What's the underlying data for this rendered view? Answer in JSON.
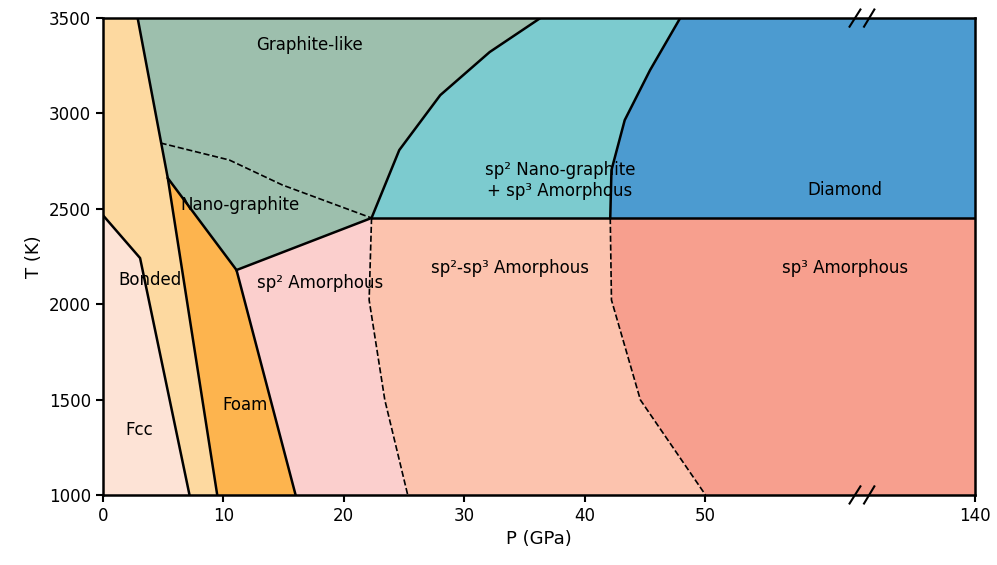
{
  "chart_data": {
    "type": "phase_diagram",
    "xlabel": "P (GPa)",
    "ylabel": "T (K)",
    "xlim": [
      0,
      140
    ],
    "ylim": [
      1000,
      3500
    ],
    "xticks": [
      0,
      10,
      20,
      30,
      40,
      50,
      140
    ],
    "yticks": [
      1000,
      1500,
      2000,
      2500,
      3000,
      3500
    ],
    "regions": [
      {
        "name": "Fcc",
        "color": "#fde3d6",
        "boundary": [
          [
            0,
            1000
          ],
          [
            7.2,
            1000
          ],
          [
            3.1,
            2242
          ],
          [
            0,
            2468
          ]
        ]
      },
      {
        "name": "Bonded",
        "color": "#fdd9a0",
        "boundary": [
          [
            0,
            2468
          ],
          [
            3.1,
            2242
          ],
          [
            7.2,
            1000
          ],
          [
            9.5,
            1000
          ],
          [
            5.4,
            2661
          ],
          [
            2.9,
            3500
          ],
          [
            0,
            3500
          ]
        ]
      },
      {
        "name": "Foam",
        "color": "#fdb44e",
        "boundary": [
          [
            9.5,
            1000
          ],
          [
            16,
            1000
          ],
          [
            11.1,
            2179
          ],
          [
            5.4,
            2661
          ]
        ]
      },
      {
        "name": "Graphite-like",
        "color": "#9dbfad",
        "boundary": [
          [
            2.9,
            3500
          ],
          [
            4.8,
            2845
          ],
          [
            10.5,
            2756
          ],
          [
            14.9,
            2625
          ],
          [
            22.3,
            2452
          ],
          [
            24.6,
            2808
          ],
          [
            28.0,
            3096
          ],
          [
            32.1,
            3322
          ],
          [
            36.3,
            3500
          ]
        ]
      },
      {
        "name": "Nano-graphite",
        "color": "#9dbfad",
        "boundary": [
          [
            4.8,
            2845
          ],
          [
            5.4,
            2661
          ],
          [
            11.1,
            2179
          ],
          [
            22.3,
            2452
          ],
          [
            14.9,
            2625
          ],
          [
            10.5,
            2756
          ]
        ]
      },
      {
        "name": "sp² Nano-graphite\n+ sp³ Amorphous",
        "color": "#7ccbcf",
        "boundary": [
          [
            22.3,
            2452
          ],
          [
            42.1,
            2452
          ],
          [
            42.2,
            2703
          ],
          [
            43.3,
            2965
          ],
          [
            45.4,
            3227
          ],
          [
            47.9,
            3500
          ],
          [
            36.3,
            3500
          ],
          [
            32.1,
            3322
          ],
          [
            28.0,
            3096
          ],
          [
            24.6,
            2808
          ]
        ]
      },
      {
        "name": "Diamond",
        "color": "#4c9bd0",
        "boundary": [
          [
            42.1,
            2452
          ],
          [
            140,
            2452
          ],
          [
            140,
            3500
          ],
          [
            47.9,
            3500
          ],
          [
            45.4,
            3227
          ],
          [
            43.3,
            2965
          ],
          [
            42.2,
            2703
          ]
        ]
      },
      {
        "name": "sp² Amorphous",
        "color": "#fbcfcd",
        "boundary": [
          [
            16,
            1000
          ],
          [
            25.3,
            1000
          ],
          [
            23.4,
            1498
          ],
          [
            22.1,
            2022
          ],
          [
            22.3,
            2452
          ],
          [
            11.1,
            2179
          ]
        ]
      },
      {
        "name": "sp²-sp³ Amorphous",
        "color": "#fcc3ae",
        "boundary": [
          [
            25.3,
            1000
          ],
          [
            50,
            1000
          ],
          [
            44.6,
            1498
          ],
          [
            42.2,
            2022
          ],
          [
            42.1,
            2452
          ],
          [
            22.3,
            2452
          ],
          [
            22.1,
            2022
          ],
          [
            23.4,
            1498
          ]
        ]
      },
      {
        "name": "sp³ Amorphous",
        "color": "#f79f8e",
        "boundary": [
          [
            50,
            1000
          ],
          [
            140,
            1000
          ],
          [
            140,
            2452
          ],
          [
            42.1,
            2452
          ],
          [
            42.2,
            2022
          ],
          [
            44.6,
            1498
          ]
        ]
      }
    ],
    "boundaries": [
      {
        "line_style": "solid",
        "points": [
          [
            0,
            2468
          ],
          [
            3.1,
            2242
          ],
          [
            7.2,
            1000
          ]
        ]
      },
      {
        "line_style": "solid",
        "points": [
          [
            2.9,
            3500
          ],
          [
            5.4,
            2661
          ],
          [
            9.5,
            1000
          ]
        ]
      },
      {
        "line_style": "solid",
        "points": [
          [
            5.4,
            2661
          ],
          [
            11.1,
            2179
          ],
          [
            16,
            1000
          ]
        ]
      },
      {
        "line_style": "solid",
        "points": [
          [
            11.1,
            2179
          ],
          [
            22.3,
            2452
          ]
        ]
      },
      {
        "line_style": "solid",
        "points": [
          [
            22.3,
            2452
          ],
          [
            24.6,
            2808
          ],
          [
            28.0,
            3096
          ],
          [
            32.1,
            3322
          ],
          [
            36.3,
            3500
          ]
        ]
      },
      {
        "line_style": "solid",
        "points": [
          [
            22.3,
            2452
          ],
          [
            140,
            2452
          ]
        ]
      },
      {
        "line_style": "solid",
        "points": [
          [
            42.1,
            2452
          ],
          [
            42.2,
            2703
          ],
          [
            43.3,
            2965
          ],
          [
            45.4,
            3227
          ],
          [
            47.9,
            3500
          ]
        ]
      },
      {
        "line_style": "dashed",
        "points": [
          [
            4.8,
            2845
          ],
          [
            10.5,
            2756
          ],
          [
            14.9,
            2625
          ],
          [
            22.3,
            2452
          ]
        ]
      },
      {
        "line_style": "dashed",
        "points": [
          [
            22.3,
            2452
          ],
          [
            22.1,
            2022
          ],
          [
            23.4,
            1498
          ],
          [
            25.3,
            1000
          ]
        ]
      },
      {
        "line_style": "dashed",
        "points": [
          [
            42.1,
            2452
          ],
          [
            42.2,
            2022
          ],
          [
            44.6,
            1498
          ],
          [
            50,
            1000
          ]
        ]
      }
    ]
  }
}
